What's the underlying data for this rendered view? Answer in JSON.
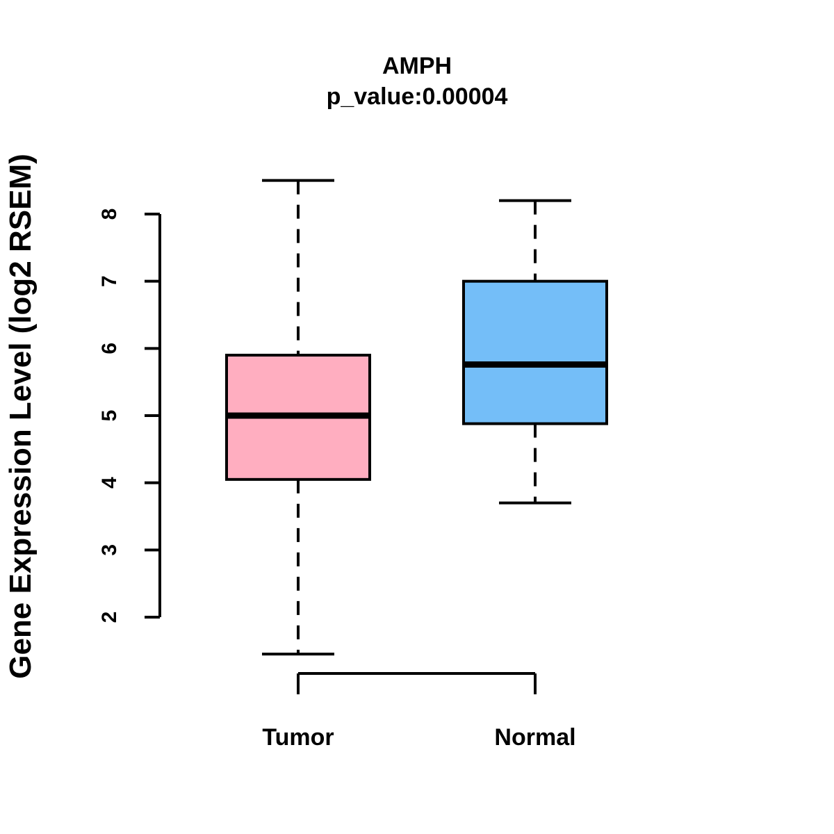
{
  "figure": {
    "background": "#ffffff"
  },
  "chart_data": {
    "type": "boxplot",
    "title": "AMPH",
    "subtitle": "p_value:0.00004",
    "ylabel": "Gene Expression Level (log2 RSEM)",
    "xlabel": "",
    "ylim": [
      2,
      8
    ],
    "yticks": [
      2,
      3,
      4,
      5,
      6,
      7,
      8
    ],
    "categories": [
      "Tumor",
      "Normal"
    ],
    "series": [
      {
        "name": "Tumor",
        "whisker_low": 1.45,
        "q1": 4.05,
        "median": 5.0,
        "q3": 5.9,
        "whisker_high": 8.5,
        "fill": "#FFAEC0"
      },
      {
        "name": "Normal",
        "whisker_low": 3.7,
        "q1": 4.88,
        "median": 5.76,
        "q3": 7.0,
        "whisker_high": 8.2,
        "fill": "#74BEF8"
      }
    ],
    "colors": {
      "stroke": "#000000",
      "background": "#FFFFFF"
    },
    "legend": "none",
    "grid": false
  }
}
